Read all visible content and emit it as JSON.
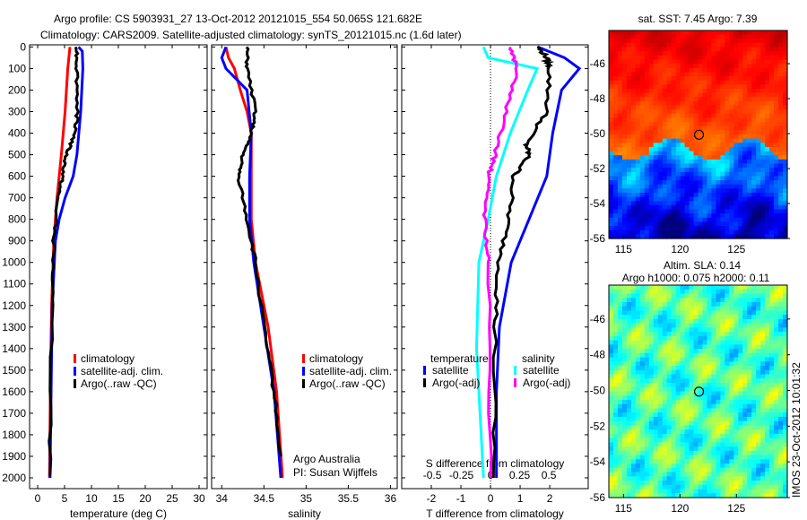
{
  "title_line1": "Argo profile: CS 5903931_27 13-Oct-2012 20121015_554 50.065S 121.682E",
  "title_line2": "Climatology: CARS2009. Satellite-adjusted climatology: synTS_20121015.nc (1.6d later)",
  "colors": {
    "climatology": "#ff0000",
    "satellite": "#0000ff",
    "argo": "#000000",
    "sal_satellite": "#00ffff",
    "sal_argo": "#ff00ff"
  },
  "chart_data": [
    {
      "type": "line",
      "name": "temperature",
      "xlabel": "temperature (deg C)",
      "xlim": [
        -1.5,
        31.5
      ],
      "ylim": [
        2050,
        -10
      ],
      "xticks": [
        "0",
        "5",
        "10",
        "15",
        "20",
        "25",
        "30"
      ],
      "yticks": [
        "0",
        "100",
        "200",
        "300",
        "400",
        "500",
        "600",
        "700",
        "800",
        "900",
        "1000",
        "1100",
        "1200",
        "1300",
        "1400",
        "1500",
        "1600",
        "1700",
        "1800",
        "1900",
        "2000"
      ],
      "legend": [
        "climatology",
        "satellite-adj. clim.",
        "Argo(..raw -QC)"
      ],
      "series": [
        {
          "name": "climatology",
          "depth": [
            0,
            100,
            300,
            500,
            700,
            900,
            1200,
            1500,
            2000
          ],
          "values": [
            6.0,
            5.6,
            5.1,
            4.4,
            3.6,
            3.0,
            2.6,
            2.4,
            2.2
          ]
        },
        {
          "name": "satellite-adj. clim.",
          "depth": [
            0,
            20,
            100,
            300,
            500,
            600,
            700,
            800,
            900,
            1200,
            2000
          ],
          "values": [
            7.6,
            8.3,
            8.4,
            8.0,
            7.3,
            6.6,
            5.1,
            4.0,
            3.3,
            2.7,
            2.3
          ]
        },
        {
          "name": "Argo(..raw -QC)",
          "depth": [
            0,
            100,
            300,
            400,
            500,
            600,
            700,
            900,
            1200,
            1990
          ],
          "values": [
            7.3,
            7.3,
            7.4,
            7.0,
            5.3,
            4.6,
            3.7,
            3.0,
            2.6,
            2.3
          ]
        }
      ]
    },
    {
      "type": "line",
      "name": "salinity",
      "xlabel": "salinity",
      "xlim": [
        33.88,
        36.08
      ],
      "ylim": [
        2050,
        -10
      ],
      "xticks": [
        "34",
        "34.5",
        "35",
        "35.5",
        "36"
      ],
      "legend": [
        "climatology",
        "satellite-adj. clim.",
        "Argo(..raw -QC)"
      ],
      "annotation": [
        "Argo Australia",
        "PI: Susan Wijffels"
      ],
      "series": [
        {
          "name": "climatology",
          "depth": [
            0,
            50,
            100,
            200,
            300,
            400,
            800,
            1000,
            1300,
            1600,
            2000
          ],
          "values": [
            34.05,
            34.08,
            34.15,
            34.22,
            34.3,
            34.35,
            34.35,
            34.4,
            34.55,
            34.65,
            34.72
          ]
        },
        {
          "name": "satellite-adj. clim.",
          "depth": [
            0,
            50,
            100,
            200,
            400,
            600,
            800,
            1000,
            1300,
            1600,
            2000
          ],
          "values": [
            34.05,
            34.0,
            34.05,
            34.3,
            34.35,
            34.33,
            34.33,
            34.38,
            34.5,
            34.62,
            34.7
          ]
        },
        {
          "name": "Argo(..raw -QC)",
          "depth": [
            0,
            100,
            300,
            400,
            500,
            600,
            800,
            1000,
            1300,
            1600,
            1900
          ],
          "values": [
            34.3,
            34.3,
            34.4,
            34.35,
            34.25,
            34.2,
            34.3,
            34.4,
            34.5,
            34.62,
            34.7
          ]
        }
      ]
    },
    {
      "type": "line",
      "name": "difference",
      "xlabel": "T difference from climatology",
      "xlabel_top": "S difference from climatology",
      "xlim": [
        -3.0,
        3.3
      ],
      "ylim": [
        2050,
        -10
      ],
      "xticks": [
        "-2",
        "-1",
        "0",
        "1",
        "2"
      ],
      "sticks": [
        "-0.5",
        "-0.25",
        "0",
        "0.25",
        "0.5"
      ],
      "legend_headers": [
        "temperature",
        "salinity"
      ],
      "legend": [
        "satellite",
        "Argo(-adj)",
        "satellite",
        "Argo(-adj)"
      ],
      "series": [
        {
          "name": "T satellite",
          "depth": [
            0,
            50,
            100,
            200,
            400,
            600,
            800,
            1000,
            1300,
            1600,
            2000
          ],
          "values": [
            1.6,
            2.5,
            3.0,
            2.4,
            2.1,
            1.9,
            1.3,
            0.7,
            0.3,
            0.2,
            0.2
          ]
        },
        {
          "name": "T Argo(-adj)",
          "depth": [
            0,
            50,
            100,
            300,
            450,
            500,
            600,
            800,
            1000,
            1300,
            2000
          ],
          "values": [
            1.6,
            1.9,
            2.0,
            1.9,
            1.2,
            1.3,
            0.8,
            0.6,
            0.3,
            0.15,
            0.1
          ]
        },
        {
          "name": "S satellite",
          "depth": [
            0,
            50,
            100,
            200,
            400,
            600,
            800,
            1000,
            1400,
            2000
          ],
          "values": [
            -0.06,
            -0.02,
            0.4,
            0.32,
            0.17,
            0.05,
            -0.02,
            -0.1,
            -0.12,
            -0.06
          ]
        },
        {
          "name": "S Argo(-adj)",
          "depth": [
            0,
            100,
            300,
            500,
            600,
            800,
            1000,
            2000
          ],
          "values": [
            0.17,
            0.23,
            0.13,
            0.04,
            -0.02,
            -0.05,
            -0.02,
            0.0
          ]
        }
      ]
    },
    {
      "type": "heatmap",
      "name": "sst-map",
      "title": "sat. SST: 7.45 Argo: 7.39",
      "xticks": [
        "115",
        "120",
        "125"
      ],
      "yticks": [
        "-46",
        "-48",
        "-50",
        "-52",
        "-54",
        "-56"
      ],
      "xlim": [
        113.7,
        129.5
      ],
      "ylim": [
        -56,
        -44.1
      ],
      "marker": {
        "lon": 121.682,
        "lat": -50.065
      }
    },
    {
      "type": "heatmap",
      "name": "sla-map",
      "title": [
        "Altim. SLA: 0.14",
        "Argo h1000: 0.075 h2000: 0.11"
      ],
      "xticks": [
        "115",
        "120",
        "125"
      ],
      "yticks": [
        "-46",
        "-48",
        "-50",
        "-52",
        "-54",
        "-56"
      ],
      "xlim": [
        113.7,
        129.5
      ],
      "ylim": [
        -56,
        -44.1
      ],
      "marker": {
        "lon": 121.682,
        "lat": -50.065
      },
      "timestamp": "IMOS 23-Oct-2012 10:01:32"
    }
  ]
}
